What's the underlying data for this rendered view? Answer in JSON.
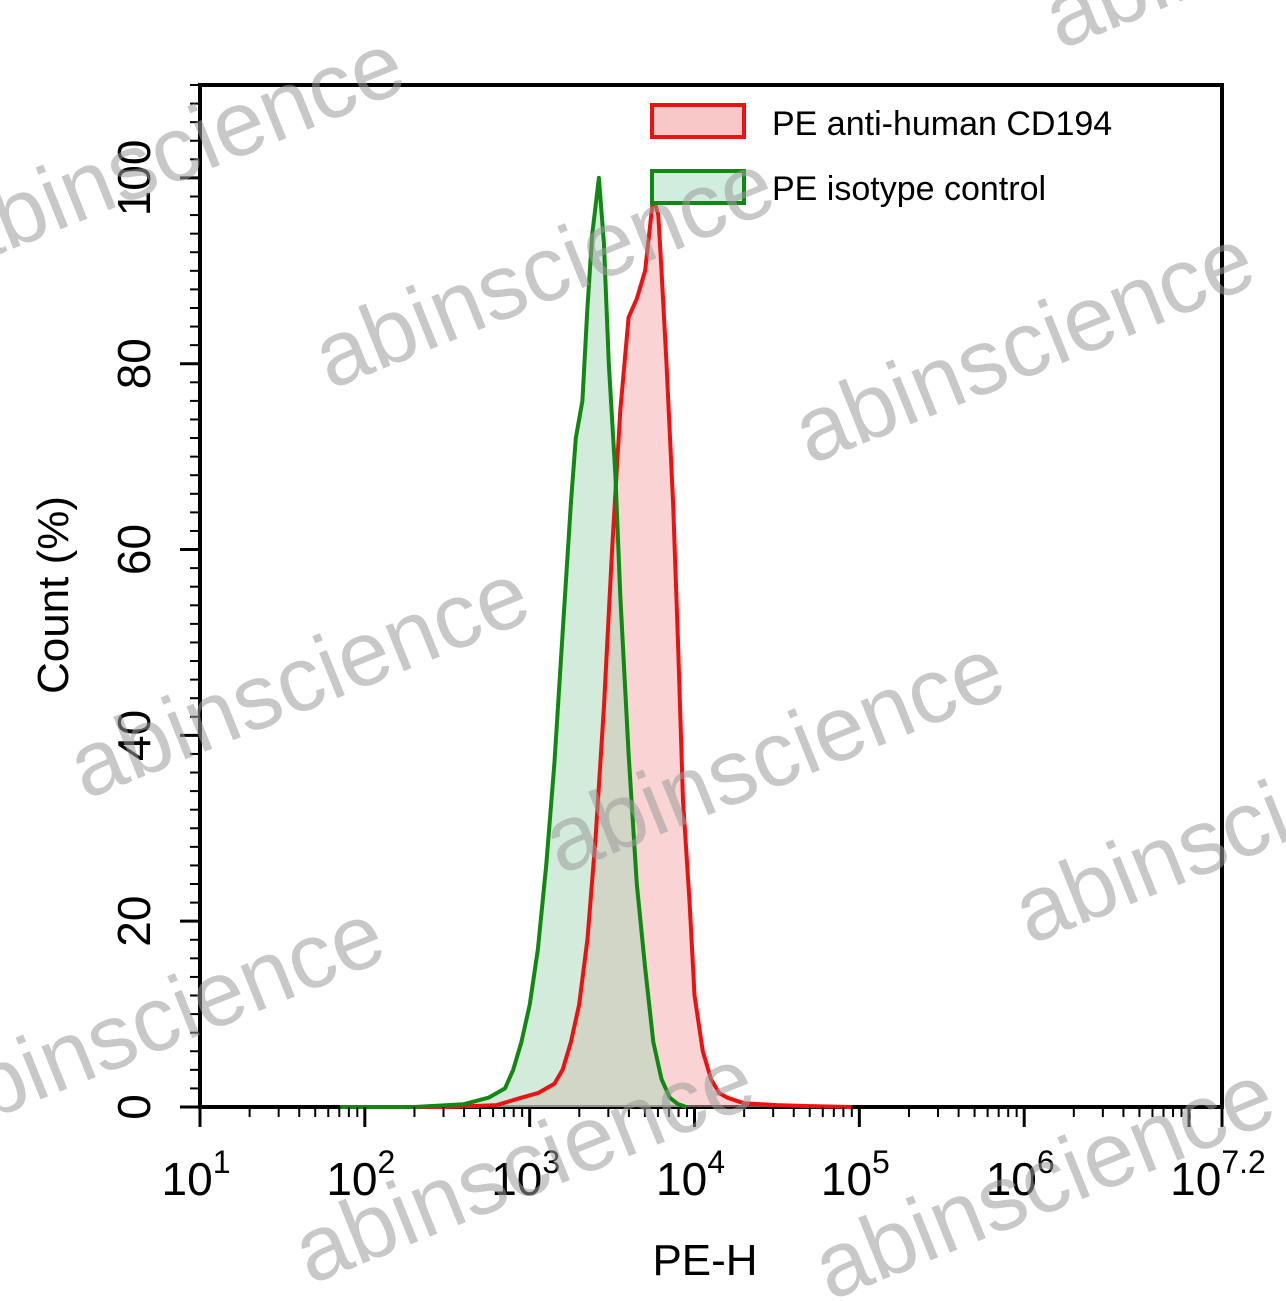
{
  "chart_data": {
    "type": "area",
    "xlabel": "PE-H",
    "ylabel": "Count (%)",
    "x_scale": "log10",
    "xlim_exp": [
      1,
      7.2
    ],
    "ylim": [
      0,
      110
    ],
    "x_ticks": [
      {
        "base": "10",
        "exp": "1",
        "value": 1
      },
      {
        "base": "10",
        "exp": "2",
        "value": 2
      },
      {
        "base": "10",
        "exp": "3",
        "value": 3
      },
      {
        "base": "10",
        "exp": "4",
        "value": 4
      },
      {
        "base": "10",
        "exp": "5",
        "value": 5
      },
      {
        "base": "10",
        "exp": "6",
        "value": 6
      },
      {
        "base": "10",
        "exp": "7.2",
        "value": 7.2
      }
    ],
    "y_ticks": [
      "0",
      "20",
      "40",
      "60",
      "80",
      "100"
    ],
    "legend_position": "top-right",
    "series": [
      {
        "name": "PE anti-human CD194",
        "stroke": "#ee1111",
        "fill": "#f5a9a9",
        "log_x": [
          1.95,
          2.5,
          2.8,
          2.95,
          3.05,
          3.15,
          3.2,
          3.25,
          3.3,
          3.35,
          3.4,
          3.45,
          3.5,
          3.55,
          3.6,
          3.65,
          3.7,
          3.75,
          3.78,
          3.8,
          3.83,
          3.87,
          3.9,
          3.93,
          3.97,
          4.0,
          4.05,
          4.1,
          4.15,
          4.2,
          4.3,
          4.5,
          4.7,
          4.95
        ],
        "y": [
          0,
          0,
          0.2,
          1,
          1.5,
          2.5,
          4,
          7,
          11,
          18,
          29,
          43,
          60,
          75,
          85,
          87,
          90,
          98,
          96,
          90,
          80,
          65,
          50,
          33,
          22,
          12,
          6,
          3,
          1.5,
          1,
          0.4,
          0.2,
          0.1,
          0
        ]
      },
      {
        "name": "PE isotype control",
        "stroke": "#118811",
        "fill": "#a8d8b8",
        "log_x": [
          1.85,
          2.3,
          2.6,
          2.75,
          2.85,
          2.9,
          2.95,
          3.0,
          3.05,
          3.1,
          3.15,
          3.2,
          3.25,
          3.28,
          3.32,
          3.35,
          3.38,
          3.42,
          3.45,
          3.48,
          3.52,
          3.55,
          3.6,
          3.65,
          3.7,
          3.75,
          3.8,
          3.85,
          3.9,
          3.95
        ],
        "y": [
          0,
          0,
          0.3,
          1,
          2,
          4,
          7,
          11,
          17,
          26,
          37,
          51,
          65,
          72,
          76,
          86,
          94,
          100,
          93,
          80,
          68,
          55,
          38,
          24,
          15,
          7,
          3,
          1,
          0.3,
          0
        ]
      }
    ]
  },
  "watermark": "abinscience"
}
